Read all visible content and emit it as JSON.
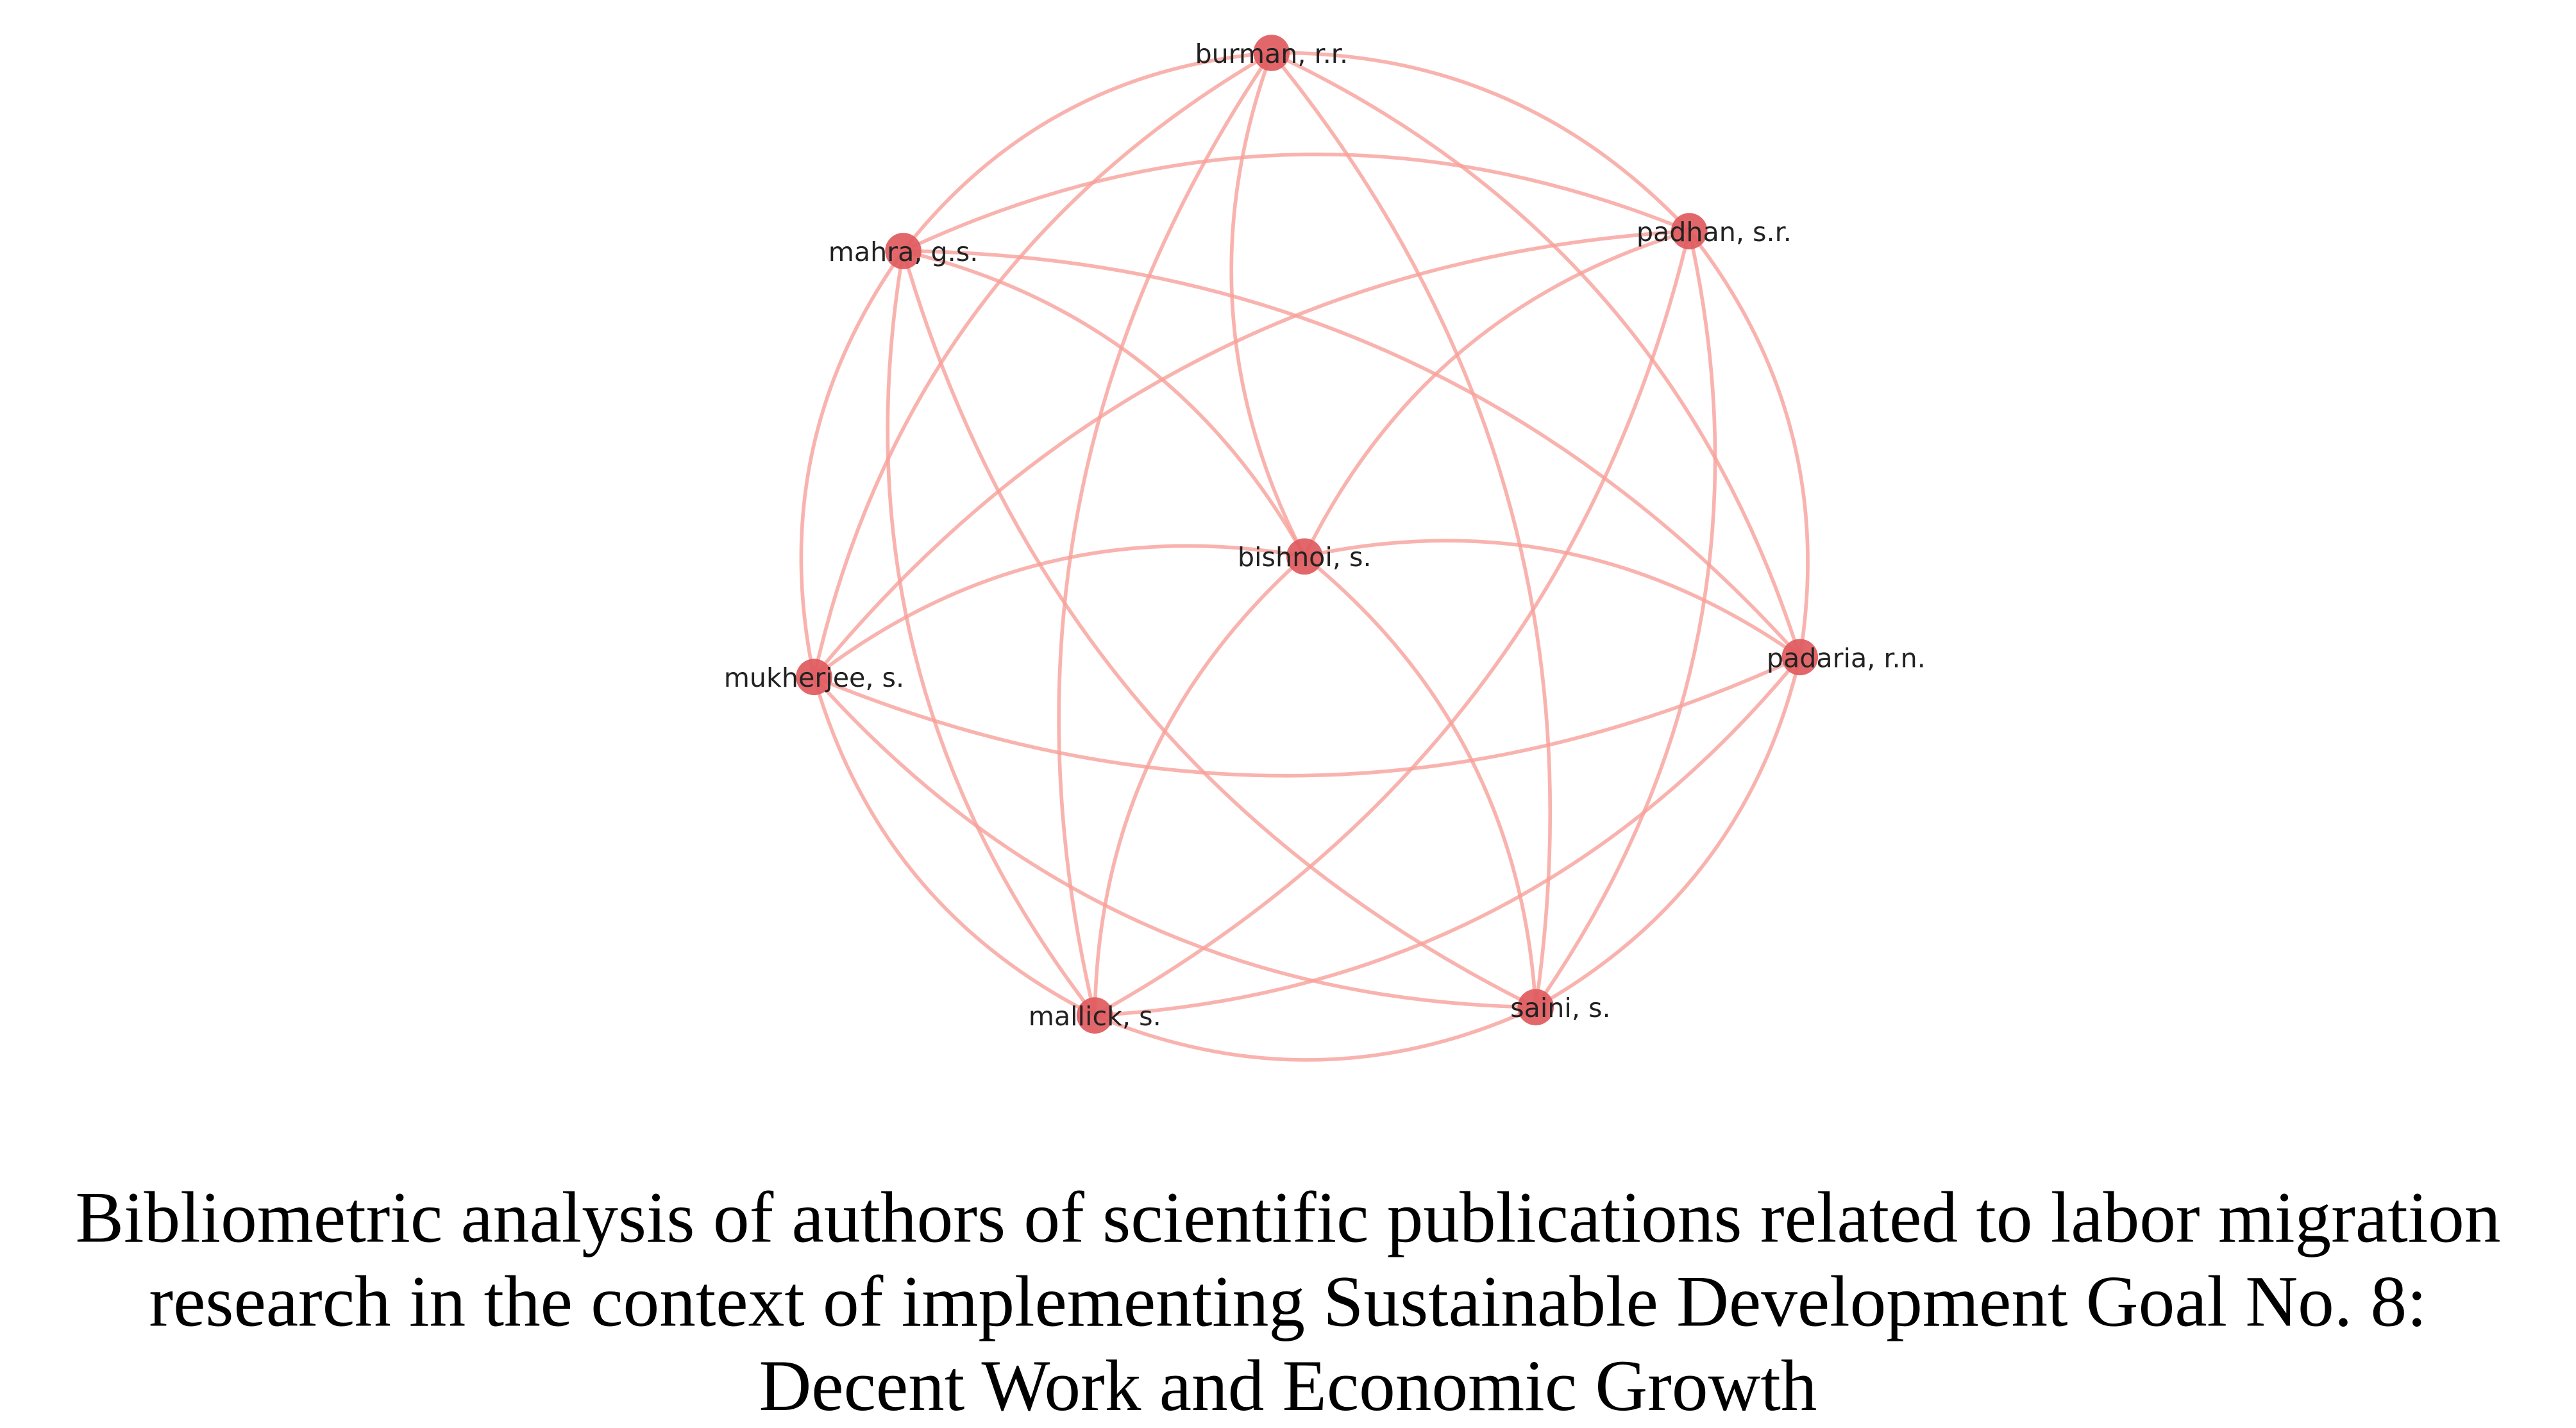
{
  "colors": {
    "node": "#e05a5e",
    "edge": "#f8a09a",
    "label": "#222222"
  },
  "network": {
    "nodes": [
      {
        "id": "burman",
        "label": "burman, r.r."
      },
      {
        "id": "mahra",
        "label": "mahra, g.s."
      },
      {
        "id": "padhan",
        "label": "padhan, s.r."
      },
      {
        "id": "bishnoi",
        "label": "bishnoi, s."
      },
      {
        "id": "mukherjee",
        "label": "mukherjee, s."
      },
      {
        "id": "padaria",
        "label": "padaria, r.n."
      },
      {
        "id": "mallick",
        "label": "mallick, s."
      },
      {
        "id": "saini",
        "label": "saini, s."
      }
    ],
    "edges": "all-pairs"
  },
  "caption": {
    "line1": "Bibliometric analysis of authors of scientific publications related to labor migration",
    "line2": "research in the context of implementing Sustainable Development Goal No. 8:",
    "line3": "Decent Work and Economic Growth"
  }
}
